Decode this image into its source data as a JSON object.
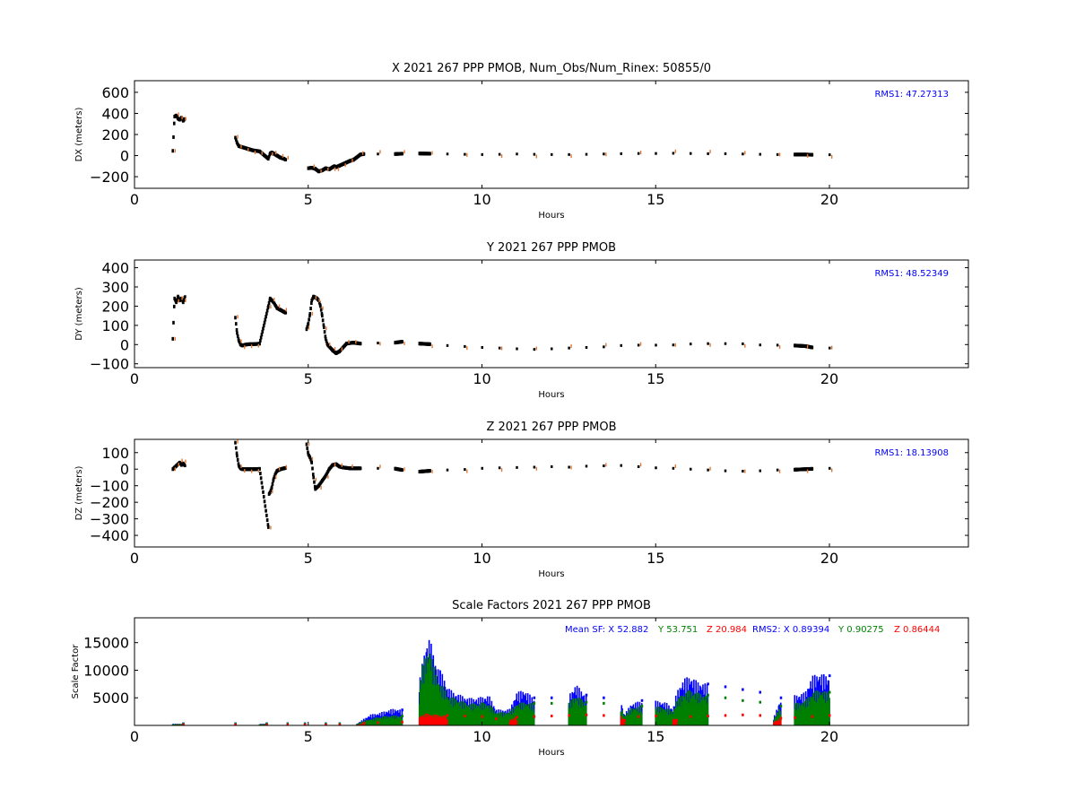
{
  "chart_data": [
    {
      "type": "scatter",
      "title": "X 2021 267 PPP  PMOB, Num_Obs/Num_Rinex: 50855/0",
      "xlabel": "Hours",
      "ylabel": "DX (meters)",
      "xlim": [
        0,
        24
      ],
      "ylim": [
        -310,
        710
      ],
      "xticks": [
        "0",
        "5",
        "10",
        "15",
        "20"
      ],
      "yticks": [
        "600",
        "400",
        "200",
        "0",
        "−200"
      ],
      "ytick_values": [
        600,
        400,
        200,
        0,
        -200
      ],
      "annotation": "RMS1: 47.27313",
      "annotation_color": "#0000ff",
      "series": [
        {
          "marker_color": "#000000",
          "outlier_color": "#e07b39",
          "x": [
            1.1,
            1.15,
            1.2,
            1.25,
            1.3,
            1.35,
            1.4,
            1.45,
            2.9,
            2.95,
            3.0,
            3.1,
            3.2,
            3.3,
            3.4,
            3.5,
            3.6,
            3.85,
            3.9,
            3.95,
            4.0,
            4.1,
            4.2,
            4.3,
            4.35,
            5.0,
            5.1,
            5.2,
            5.3,
            5.4,
            5.5,
            5.6,
            5.7,
            5.75,
            5.8,
            5.9,
            6.0,
            6.1,
            6.2,
            6.3,
            6.5,
            6.6,
            7.0,
            7.5,
            7.7,
            8.2,
            8.5,
            9.0,
            9.5,
            10.0,
            10.5,
            11.0,
            11.5,
            12.0,
            12.5,
            13.0,
            13.5,
            14.0,
            14.5,
            15.0,
            15.5,
            16.0,
            16.5,
            17.0,
            17.5,
            18.0,
            18.5,
            19.0,
            19.3,
            19.5,
            20.0
          ],
          "y": [
            45,
            370,
            380,
            350,
            340,
            360,
            330,
            350,
            170,
            120,
            90,
            80,
            70,
            60,
            50,
            45,
            40,
            -30,
            20,
            30,
            20,
            0,
            -20,
            -30,
            -40,
            -120,
            -115,
            -125,
            -150,
            -140,
            -120,
            -130,
            -110,
            -100,
            -110,
            -95,
            -80,
            -65,
            -50,
            -40,
            10,
            15,
            15,
            15,
            18,
            20,
            18,
            15,
            12,
            10,
            12,
            15,
            12,
            10,
            10,
            12,
            15,
            18,
            20,
            20,
            22,
            20,
            18,
            18,
            15,
            12,
            10,
            10,
            10,
            8,
            8
          ]
        }
      ]
    },
    {
      "type": "scatter",
      "title": "Y 2021 267 PPP  PMOB",
      "xlabel": "Hours",
      "ylabel": "DY (meters)",
      "xlim": [
        0,
        24
      ],
      "ylim": [
        -120,
        440
      ],
      "xticks": [
        "0",
        "5",
        "10",
        "15",
        "20"
      ],
      "yticks": [
        "400",
        "300",
        "200",
        "100",
        "0",
        "−100"
      ],
      "ytick_values": [
        400,
        300,
        200,
        100,
        0,
        -100
      ],
      "annotation": "RMS1: 48.52349",
      "annotation_color": "#0000ff",
      "series": [
        {
          "marker_color": "#000000",
          "outlier_color": "#e07b39",
          "x": [
            1.1,
            1.15,
            1.2,
            1.25,
            1.3,
            1.35,
            1.4,
            1.45,
            2.9,
            2.95,
            3.0,
            3.05,
            3.1,
            3.2,
            3.3,
            3.4,
            3.5,
            3.6,
            3.85,
            3.9,
            3.95,
            4.0,
            4.1,
            4.2,
            4.3,
            4.35,
            4.95,
            5.0,
            5.05,
            5.1,
            5.15,
            5.2,
            5.25,
            5.3,
            5.35,
            5.4,
            5.45,
            5.5,
            5.55,
            5.6,
            5.7,
            5.8,
            5.9,
            6.0,
            6.1,
            6.2,
            6.3,
            6.5,
            7.0,
            7.5,
            7.7,
            8.2,
            8.5,
            9.0,
            9.5,
            10.0,
            10.5,
            11.0,
            11.5,
            12.0,
            12.5,
            13.0,
            13.5,
            14.0,
            14.5,
            15.0,
            15.5,
            16.0,
            16.5,
            17.0,
            17.5,
            18.0,
            18.5,
            19.0,
            19.3,
            19.5,
            20.0
          ],
          "y": [
            30,
            240,
            220,
            250,
            230,
            240,
            220,
            250,
            140,
            60,
            20,
            0,
            -5,
            0,
            2,
            2,
            3,
            5,
            200,
            240,
            230,
            220,
            190,
            180,
            170,
            165,
            80,
            110,
            160,
            230,
            250,
            245,
            240,
            230,
            200,
            150,
            90,
            30,
            0,
            -10,
            -30,
            -45,
            -35,
            -15,
            5,
            8,
            10,
            5,
            8,
            10,
            15,
            5,
            2,
            -5,
            -10,
            -15,
            -18,
            -22,
            -25,
            -22,
            -18,
            -15,
            -12,
            -5,
            -3,
            -3,
            -2,
            3,
            5,
            5,
            4,
            -2,
            -3,
            -5,
            -8,
            -15,
            -18
          ]
        }
      ]
    },
    {
      "type": "scatter",
      "title": "Z 2021 267 PPP  PMOB",
      "xlabel": "Hours",
      "ylabel": "DZ (meters)",
      "xlim": [
        0,
        24
      ],
      "ylim": [
        -470,
        180
      ],
      "xticks": [
        "0",
        "5",
        "10",
        "15",
        "20"
      ],
      "yticks": [
        "100",
        "0",
        "−100",
        "−200",
        "−300",
        "−400"
      ],
      "ytick_values": [
        100,
        0,
        -100,
        -200,
        -300,
        -400
      ],
      "annotation": "RMS1: 18.13908",
      "annotation_color": "#0000ff",
      "series": [
        {
          "marker_color": "#000000",
          "outlier_color": "#e07b39",
          "x": [
            1.1,
            1.15,
            1.2,
            1.25,
            1.3,
            1.35,
            1.4,
            1.45,
            2.9,
            2.95,
            3.0,
            3.05,
            3.1,
            3.2,
            3.3,
            3.4,
            3.5,
            3.6,
            3.85,
            3.87,
            3.9,
            3.95,
            4.0,
            4.05,
            4.1,
            4.2,
            4.3,
            4.35,
            4.95,
            5.0,
            5.05,
            5.1,
            5.15,
            5.2,
            5.3,
            5.4,
            5.5,
            5.6,
            5.7,
            5.8,
            5.9,
            6.0,
            6.2,
            6.5,
            7.0,
            7.5,
            7.7,
            8.2,
            8.5,
            9.0,
            9.5,
            10.0,
            10.5,
            11.0,
            11.5,
            12.0,
            12.5,
            13.0,
            13.5,
            14.0,
            14.5,
            15.0,
            15.5,
            16.0,
            16.5,
            17.0,
            17.5,
            18.0,
            18.5,
            19.0,
            19.3,
            19.5,
            20.0
          ],
          "y": [
            0,
            10,
            20,
            30,
            40,
            25,
            35,
            20,
            160,
            80,
            20,
            5,
            0,
            0,
            0,
            0,
            0,
            2,
            -350,
            -150,
            -140,
            -110,
            -60,
            -30,
            -10,
            0,
            5,
            8,
            150,
            90,
            70,
            40,
            -50,
            -120,
            -100,
            -70,
            -40,
            0,
            25,
            30,
            15,
            10,
            5,
            5,
            5,
            3,
            -5,
            -15,
            -10,
            -5,
            -2,
            5,
            8,
            10,
            12,
            15,
            12,
            18,
            20,
            22,
            15,
            8,
            5,
            0,
            -5,
            -10,
            -12,
            -10,
            -5,
            -3,
            0,
            2,
            5
          ]
        }
      ]
    },
    {
      "type": "scatter",
      "title": "Scale Factors 2021 267 PPP  PMOB",
      "xlabel": "Hours",
      "ylabel": "Scale Factor",
      "xlim": [
        0,
        24
      ],
      "ylim": [
        0,
        19500
      ],
      "xticks": [
        "0",
        "5",
        "10",
        "15",
        "20"
      ],
      "yticks": [
        "15000",
        "10000",
        "5000"
      ],
      "ytick_values": [
        15000,
        10000,
        5000
      ],
      "legend_text": [
        {
          "text": "Mean SF: X  52.882",
          "color": "#0000ff"
        },
        {
          "text": "Y  53.751",
          "color": "#008000"
        },
        {
          "text": "Z  20.984",
          "color": "#ff0000"
        },
        {
          "text": "RMS2: X  0.89394",
          "color": "#0000ff"
        },
        {
          "text": "Y  0.90275",
          "color": "#008000"
        },
        {
          "text": "Z  0.86444",
          "color": "#ff0000"
        }
      ],
      "series": [
        {
          "color": "#0000ff",
          "x": [
            1.1,
            1.4,
            2.9,
            3.6,
            3.8,
            4.4,
            4.9,
            5.5,
            5.9,
            6.4,
            6.6,
            6.8,
            7.0,
            7.2,
            7.4,
            7.6,
            7.7,
            8.2,
            8.3,
            8.4,
            8.5,
            8.6,
            8.7,
            8.8,
            8.9,
            9.0,
            9.2,
            9.4,
            9.6,
            9.8,
            10.0,
            10.2,
            10.4,
            10.6,
            10.8,
            11.0,
            11.2,
            11.5,
            12.0,
            12.5,
            12.7,
            13.0,
            13.5,
            14.0,
            14.1,
            14.3,
            14.6,
            15.0,
            15.3,
            15.5,
            15.6,
            15.8,
            16.0,
            16.2,
            16.5,
            17.0,
            17.5,
            18.0,
            18.4,
            18.6,
            19.0,
            19.3,
            19.5,
            19.7,
            20.0
          ],
          "y": [
            300,
            300,
            300,
            300,
            300,
            300,
            300,
            300,
            300,
            300,
            1200,
            2000,
            2200,
            2600,
            3000,
            3000,
            2800,
            8000,
            12000,
            15000,
            16000,
            13000,
            11000,
            10000,
            9000,
            7000,
            6000,
            5500,
            5000,
            5000,
            5200,
            5500,
            3000,
            2800,
            3000,
            6000,
            6500,
            5000,
            5000,
            5500,
            7500,
            5500,
            5000,
            4500,
            2000,
            4000,
            4500,
            4500,
            4200,
            3000,
            6000,
            8500,
            9000,
            8000,
            7500,
            7000,
            6500,
            6000,
            1500,
            5000,
            5500,
            6000,
            9000,
            9500,
            9000
          ]
        },
        {
          "color": "#008000",
          "x": [
            1.1,
            1.4,
            2.9,
            3.6,
            3.8,
            4.4,
            4.9,
            5.5,
            5.9,
            6.4,
            6.6,
            6.8,
            7.0,
            7.2,
            7.4,
            7.6,
            7.7,
            8.2,
            8.3,
            8.4,
            8.5,
            8.6,
            8.7,
            8.8,
            8.9,
            9.0,
            9.2,
            9.4,
            9.6,
            9.8,
            10.0,
            10.2,
            10.4,
            10.6,
            10.8,
            11.0,
            11.2,
            11.5,
            12.0,
            12.5,
            12.7,
            13.0,
            13.5,
            14.0,
            14.1,
            14.3,
            14.6,
            15.0,
            15.3,
            15.5,
            15.6,
            15.8,
            16.0,
            16.2,
            16.5,
            17.0,
            17.5,
            18.0,
            18.4,
            18.6,
            19.0,
            19.3,
            19.5,
            19.7,
            20.0
          ],
          "y": [
            250,
            250,
            250,
            250,
            250,
            250,
            250,
            250,
            250,
            250,
            900,
            1200,
            1500,
            1700,
            1800,
            1800,
            1700,
            7000,
            11000,
            13000,
            14000,
            11000,
            9000,
            7500,
            7000,
            5500,
            5000,
            4500,
            4000,
            4000,
            4200,
            4000,
            2500,
            2400,
            2500,
            4000,
            4200,
            4000,
            4000,
            4200,
            5500,
            4200,
            4000,
            3500,
            1800,
            3200,
            3500,
            3500,
            3200,
            2500,
            4500,
            6000,
            6500,
            6000,
            5500,
            5000,
            4500,
            4200,
            1200,
            3500,
            4000,
            4500,
            6000,
            6500,
            6000
          ]
        },
        {
          "color": "#ff0000",
          "x": [
            1.1,
            1.4,
            2.9,
            3.6,
            3.8,
            4.4,
            4.9,
            5.5,
            5.9,
            6.4,
            6.6,
            7.0,
            7.7,
            8.2,
            8.4,
            8.6,
            8.8,
            9.0,
            9.5,
            10.0,
            10.4,
            10.8,
            11.0,
            11.5,
            12.0,
            12.5,
            13.0,
            13.5,
            14.0,
            14.1,
            14.5,
            15.0,
            15.5,
            15.6,
            16.0,
            16.5,
            17.0,
            17.5,
            18.0,
            18.4,
            18.6,
            19.0,
            19.5,
            20.0
          ],
          "y": [
            100,
            100,
            100,
            100,
            100,
            100,
            100,
            100,
            100,
            100,
            400,
            500,
            600,
            1800,
            2200,
            2000,
            1900,
            1800,
            1700,
            1600,
            1200,
            1100,
            1500,
            1600,
            1700,
            1800,
            1900,
            1800,
            1700,
            900,
            1600,
            1700,
            1500,
            900,
            1600,
            1700,
            1800,
            1900,
            1800,
            700,
            1300,
            1400,
            1600,
            1800
          ]
        }
      ]
    }
  ]
}
